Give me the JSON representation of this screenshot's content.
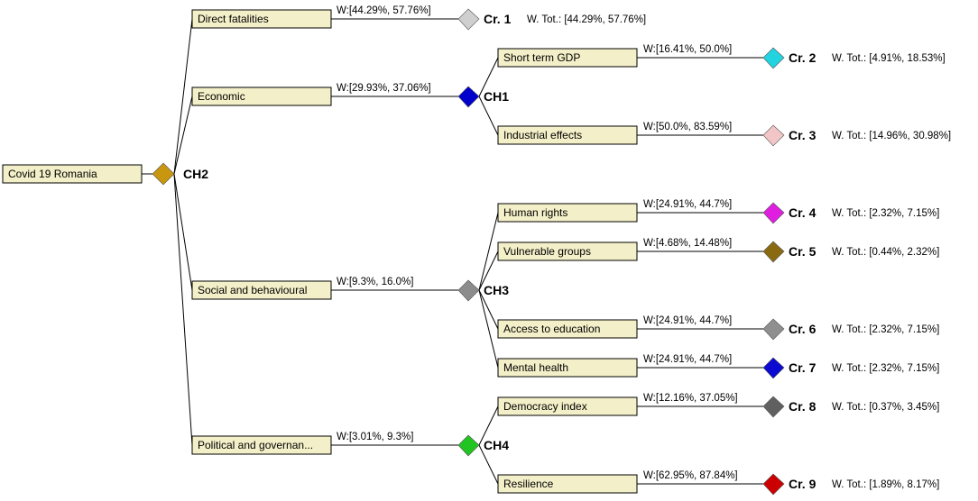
{
  "root": {
    "label": "Covid 19 Romania",
    "marker": "CH2",
    "color": "#c8960f"
  },
  "groups": [
    {
      "label": "Direct fatalities",
      "weight": "W:[44.29%, 57.76%]",
      "marker": "Cr. 1",
      "color": "#cfcfcf",
      "total": "W. Tot.: [44.29%, 57.76%]",
      "children": []
    },
    {
      "label": "Economic",
      "weight": "W:[29.93%, 37.06%]",
      "marker": "CH1",
      "color": "#0000cc",
      "children": [
        {
          "label": "Short term GDP",
          "weight": "W:[16.41%, 50.0%]",
          "marker": "Cr. 2",
          "color": "#22d3e0",
          "total": "W. Tot.: [4.91%, 18.53%]"
        },
        {
          "label": "Industrial effects",
          "weight": "W:[50.0%, 83.59%]",
          "marker": "Cr. 3",
          "color": "#f2c6c6",
          "total": "W. Tot.: [14.96%, 30.98%]"
        }
      ]
    },
    {
      "label": "Social and behavioural",
      "weight": "W:[9.3%, 16.0%]",
      "marker": "CH3",
      "color": "#8c8c8c",
      "children": [
        {
          "label": "Human rights",
          "weight": "W:[24.91%, 44.7%]",
          "marker": "Cr. 4",
          "color": "#e01ee0",
          "total": "W. Tot.: [2.32%, 7.15%]"
        },
        {
          "label": "Vulnerable groups",
          "weight": "W:[4.68%, 14.48%]",
          "marker": "Cr. 5",
          "color": "#8a6a10",
          "total": "W. Tot.: [0.44%, 2.32%]"
        },
        {
          "label": "Access to education",
          "weight": "W:[24.91%, 44.7%]",
          "marker": "Cr. 6",
          "color": "#8f8f8f",
          "total": "W. Tot.: [2.32%, 7.15%]"
        },
        {
          "label": "Mental health",
          "weight": "W:[24.91%, 44.7%]",
          "marker": "Cr. 7",
          "color": "#0a0ad0",
          "total": "W. Tot.: [2.32%, 7.15%]"
        }
      ]
    },
    {
      "label": "Political and governan...",
      "weight": "W:[3.01%, 9.3%]",
      "marker": "CH4",
      "color": "#22c422",
      "children": [
        {
          "label": "Democracy index",
          "weight": "W:[12.16%, 37.05%]",
          "marker": "Cr. 8",
          "color": "#606060",
          "total": "W. Tot.: [0.37%, 3.45%]"
        },
        {
          "label": "Resilience",
          "weight": "W:[62.95%, 87.84%]",
          "marker": "Cr. 9",
          "color": "#cc0000",
          "total": "W. Tot.: [1.89%, 8.17%]"
        }
      ]
    }
  ]
}
